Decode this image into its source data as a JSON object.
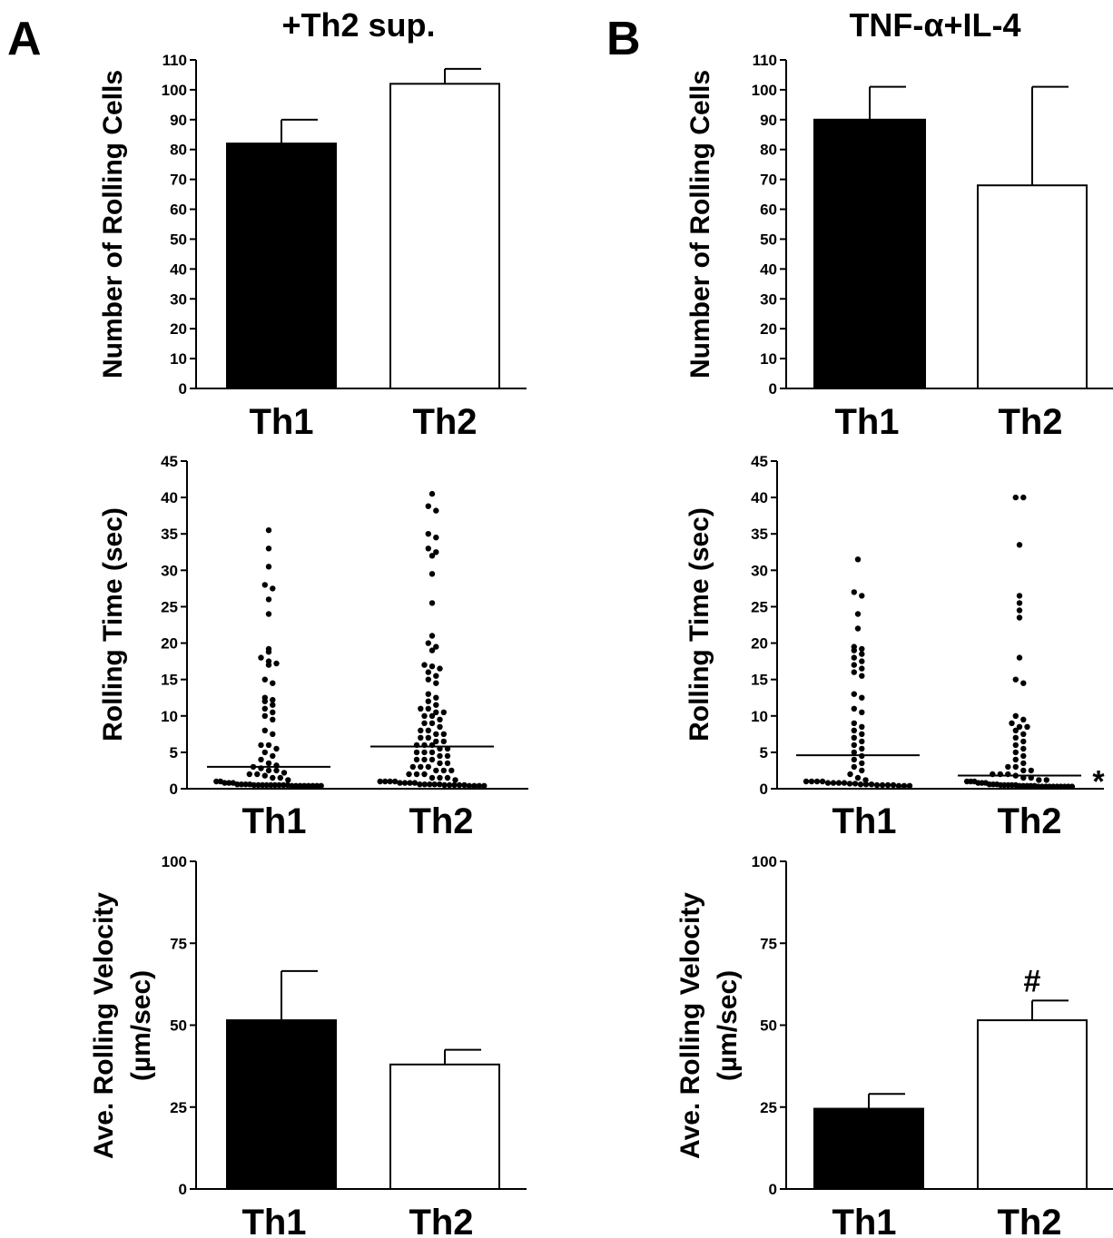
{
  "figure": {
    "panel_labels": [
      "A",
      "B"
    ],
    "condition_titles": [
      "+Th2 sup.",
      "TNF-α+IL-4"
    ]
  },
  "chart_data": [
    {
      "type": "bar",
      "panel": "A",
      "title": "+Th2 sup.",
      "ylabel": "Number of Rolling Cells",
      "xlabel": "",
      "categories": [
        "Th1",
        "Th2"
      ],
      "values": [
        82,
        102
      ],
      "errors": [
        8,
        5
      ],
      "fills": [
        "#000000",
        "#ffffff"
      ],
      "ylim": [
        0,
        110
      ],
      "yticks": [
        0,
        10,
        20,
        30,
        40,
        50,
        60,
        70,
        80,
        90,
        100,
        110
      ]
    },
    {
      "type": "bar",
      "panel": "B",
      "title": "TNF-α+IL-4",
      "ylabel": "Number of Rolling Cells",
      "xlabel": "",
      "categories": [
        "Th1",
        "Th2"
      ],
      "values": [
        90,
        68
      ],
      "errors": [
        11,
        33
      ],
      "fills": [
        "#000000",
        "#ffffff"
      ],
      "ylim": [
        0,
        110
      ],
      "yticks": [
        0,
        10,
        20,
        30,
        40,
        50,
        60,
        70,
        80,
        90,
        100,
        110
      ]
    },
    {
      "type": "scatter",
      "panel": "A",
      "ylabel": "Rolling Time (sec)",
      "xlabel": "",
      "categories": [
        "Th1",
        "Th2"
      ],
      "series": [
        {
          "category": "Th1",
          "median": 3.0,
          "values": [
            35.5,
            33.0,
            30.5,
            28.0,
            27.5,
            26.0,
            24.0,
            19.2,
            18.8,
            18.0,
            17.5,
            17.2,
            17.0,
            15.0,
            14.5,
            12.5,
            12.2,
            12.0,
            11.5,
            11.0,
            10.5,
            10.0,
            9.5,
            8.0,
            7.5,
            6.0,
            6.0,
            5.5,
            5.0,
            4.5,
            4.0,
            3.5,
            3.2,
            3.0,
            2.8,
            2.5,
            2.5,
            2.2,
            2.0,
            2.0,
            1.8,
            1.5,
            1.5,
            1.2,
            1.0,
            1.0,
            0.8,
            0.8,
            0.8,
            0.6,
            0.6,
            0.6,
            0.6,
            0.5,
            0.5,
            0.5,
            0.5,
            0.5,
            0.5,
            0.5,
            0.5,
            0.5,
            0.4,
            0.4,
            0.4,
            0.4,
            0.4,
            0.4,
            0.4,
            0.4
          ]
        },
        {
          "category": "Th2",
          "median": 5.8,
          "values": [
            40.5,
            38.8,
            38.2,
            35.0,
            34.5,
            33.0,
            32.5,
            32.0,
            29.5,
            25.5,
            21.0,
            20.0,
            19.5,
            19.0,
            17.0,
            16.8,
            16.5,
            16.0,
            15.5,
            15.0,
            14.5,
            13.0,
            12.5,
            12.0,
            11.5,
            11.0,
            11.0,
            10.5,
            10.5,
            10.0,
            10.0,
            9.5,
            9.0,
            9.0,
            8.5,
            8.0,
            8.0,
            7.5,
            7.5,
            7.0,
            7.0,
            6.5,
            6.5,
            6.0,
            6.0,
            6.0,
            5.5,
            5.5,
            5.0,
            5.0,
            5.0,
            4.5,
            4.5,
            4.0,
            4.0,
            4.0,
            3.5,
            3.5,
            3.0,
            3.0,
            3.0,
            2.5,
            2.5,
            2.5,
            2.0,
            2.0,
            2.0,
            1.5,
            1.5,
            1.5,
            1.2,
            1.0,
            1.0,
            1.0,
            1.0,
            0.8,
            0.8,
            0.8,
            0.8,
            0.6,
            0.6,
            0.6,
            0.6,
            0.6,
            0.5,
            0.5,
            0.5,
            0.5,
            0.5,
            0.4,
            0.4,
            0.4,
            0.4
          ]
        }
      ],
      "ylim": [
        0,
        45
      ],
      "yticks": [
        0,
        5,
        10,
        15,
        20,
        25,
        30,
        35,
        40,
        45
      ],
      "annotation": ""
    },
    {
      "type": "scatter",
      "panel": "B",
      "ylabel": "Rolling Time (sec)",
      "xlabel": "",
      "categories": [
        "Th1",
        "Th2"
      ],
      "series": [
        {
          "category": "Th1",
          "median": 4.6,
          "values": [
            31.5,
            27.0,
            26.5,
            24.0,
            22.0,
            19.5,
            19.2,
            19.0,
            18.5,
            18.0,
            17.5,
            17.0,
            16.5,
            16.0,
            15.5,
            13.0,
            12.5,
            11.0,
            10.5,
            9.0,
            8.5,
            8.0,
            7.5,
            7.0,
            6.5,
            6.0,
            5.5,
            5.0,
            4.5,
            4.0,
            3.5,
            3.0,
            2.5,
            2.0,
            1.5,
            1.2,
            1.0,
            1.0,
            1.0,
            1.0,
            0.8,
            0.8,
            0.8,
            0.8,
            0.7,
            0.7,
            0.6,
            0.6,
            0.6,
            0.5,
            0.5,
            0.5,
            0.5,
            0.4,
            0.4,
            0.4
          ]
        },
        {
          "category": "Th2",
          "median": 1.8,
          "values": [
            40.0,
            40.0,
            33.5,
            26.5,
            25.5,
            24.5,
            23.5,
            18.0,
            15.0,
            14.5,
            10.0,
            9.5,
            9.0,
            8.5,
            8.5,
            8.0,
            7.5,
            7.0,
            6.5,
            6.0,
            5.5,
            5.0,
            4.5,
            4.0,
            3.5,
            3.0,
            3.0,
            2.5,
            2.5,
            2.0,
            2.0,
            2.0,
            1.8,
            1.5,
            1.5,
            1.2,
            1.2,
            1.0,
            1.0,
            1.0,
            0.8,
            0.8,
            0.8,
            0.6,
            0.6,
            0.6,
            0.5,
            0.5,
            0.5,
            0.5,
            0.5,
            0.4,
            0.4,
            0.4,
            0.4,
            0.4,
            0.3,
            0.3,
            0.3,
            0.3,
            0.3,
            0.3,
            0.3,
            0.3,
            0.3,
            0.3
          ]
        }
      ],
      "ylim": [
        0,
        45
      ],
      "yticks": [
        0,
        5,
        10,
        15,
        20,
        25,
        30,
        35,
        40,
        45
      ],
      "annotation": "*"
    },
    {
      "type": "bar",
      "panel": "A",
      "ylabel": "Ave. Rolling Velocity",
      "ylabel_unit": "(µm/sec)",
      "xlabel": "",
      "categories": [
        "Th1",
        "Th2"
      ],
      "values": [
        51.5,
        38
      ],
      "errors": [
        15,
        4.5
      ],
      "fills": [
        "#000000",
        "#ffffff"
      ],
      "ylim": [
        0,
        100
      ],
      "yticks": [
        0,
        25,
        50,
        75,
        100
      ],
      "annotation": ""
    },
    {
      "type": "bar",
      "panel": "B",
      "ylabel": "Ave. Rolling Velocity",
      "ylabel_unit": "(µm/sec)",
      "xlabel": "",
      "categories": [
        "Th1",
        "Th2"
      ],
      "values": [
        24.5,
        51.5
      ],
      "errors": [
        4.5,
        6
      ],
      "fills": [
        "#000000",
        "#ffffff"
      ],
      "ylim": [
        0,
        100
      ],
      "yticks": [
        0,
        25,
        50,
        75,
        100
      ],
      "annotation": "#"
    }
  ]
}
